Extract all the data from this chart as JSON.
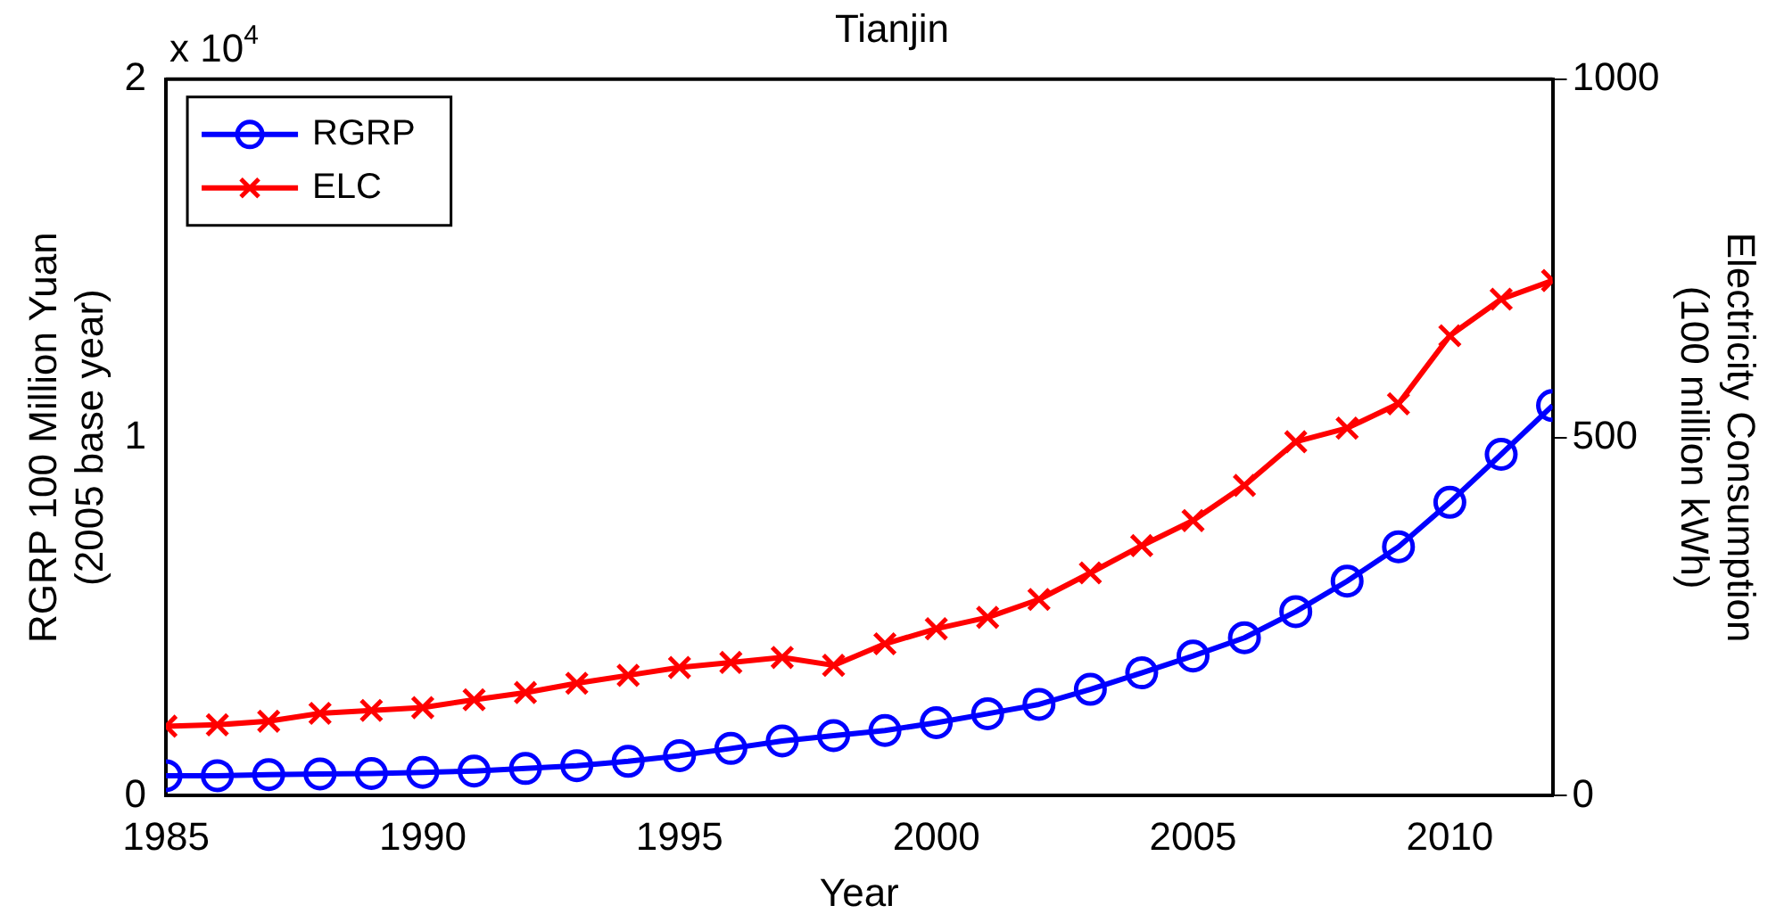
{
  "chart_data": {
    "type": "line",
    "title": "Tianjin",
    "xlabel": "Year",
    "ylabel": "RGRP 100 Million Yuan\n(2005 base year)",
    "y2label": "Electricity Consumption\n(100 million kWh)",
    "x": [
      1985,
      1986,
      1987,
      1988,
      1989,
      1990,
      1991,
      1992,
      1993,
      1994,
      1995,
      1996,
      1997,
      1998,
      1999,
      2000,
      2001,
      2002,
      2003,
      2004,
      2005,
      2006,
      2007,
      2008,
      2009,
      2010,
      2011,
      2012
    ],
    "series": [
      {
        "name": "RGRP",
        "color": "#0000ff",
        "marker": "circle",
        "values": [
          0.056,
          0.056,
          0.059,
          0.061,
          0.062,
          0.065,
          0.069,
          0.076,
          0.084,
          0.096,
          0.112,
          0.132,
          0.153,
          0.168,
          0.182,
          0.204,
          0.229,
          0.255,
          0.297,
          0.343,
          0.39,
          0.441,
          0.514,
          0.599,
          0.695,
          0.819,
          0.953,
          1.089
        ]
      },
      {
        "name": "ELC",
        "color": "#ff0000",
        "marker": "cross",
        "axis": "y2",
        "values": [
          97,
          99,
          104,
          115,
          119,
          123,
          134,
          144,
          157,
          168,
          179,
          186,
          193,
          182,
          212,
          233,
          249,
          274,
          311,
          349,
          384,
          433,
          494,
          513,
          547,
          642,
          693,
          719
        ]
      }
    ],
    "xlim": [
      1985,
      2012
    ],
    "xticks": [
      1985,
      1990,
      1995,
      2000,
      2005,
      2010
    ],
    "ylim": [
      0,
      2
    ],
    "yticks": [
      0,
      1,
      2
    ],
    "y2lim": [
      0,
      1000
    ],
    "y2ticks": [
      0,
      500,
      1000
    ],
    "annotations": [
      "x 10$^{4}$"
    ],
    "legend": "top left",
    "grid": false
  }
}
